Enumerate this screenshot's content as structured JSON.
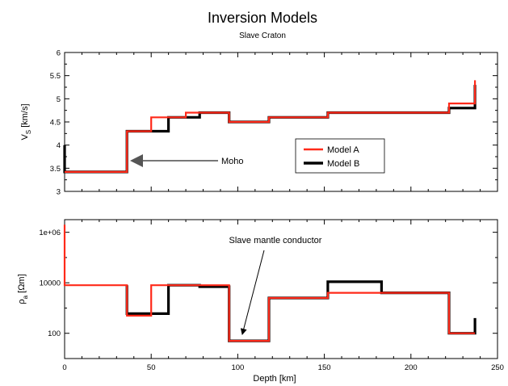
{
  "title": "Inversion Models",
  "subtitle": "Slave Craton",
  "colors": {
    "model_a": "#ff2a1a",
    "model_b": "#000000",
    "arrow": "#777777"
  },
  "chart_data": [
    {
      "type": "line",
      "step": true,
      "ylabel": "V",
      "ylabel_sub": "S",
      "ylabel_unit": " [km/s]",
      "xlim": [
        0,
        250
      ],
      "ylim": [
        3,
        6
      ],
      "yticks": [
        "3",
        "3.5",
        "4",
        "4.5",
        "5",
        "5.5",
        "6"
      ],
      "ytick_values": [
        3,
        3.5,
        4,
        4.5,
        5,
        5.5,
        6
      ],
      "xtick_values": [
        0,
        50,
        100,
        150,
        200,
        250
      ],
      "legend": {
        "placement": "center-right",
        "entries": [
          "Model A",
          "Model B"
        ]
      },
      "annotation": {
        "text": "Moho",
        "target": [
          36,
          3.65
        ]
      },
      "series": [
        {
          "name": "Model A",
          "x": [
            0,
            36,
            36,
            50,
            50,
            70,
            70,
            95,
            95,
            118,
            118,
            152,
            152,
            222,
            222,
            237,
            237
          ],
          "y": [
            3.42,
            3.42,
            4.3,
            4.3,
            4.6,
            4.6,
            4.7,
            4.7,
            4.5,
            4.5,
            4.6,
            4.6,
            4.7,
            4.7,
            4.9,
            4.9,
            5.4
          ]
        },
        {
          "name": "Model B",
          "x": [
            0,
            0,
            36,
            36,
            60,
            60,
            78,
            78,
            95,
            95,
            118,
            118,
            152,
            152,
            222,
            222,
            237,
            237
          ],
          "y": [
            4.0,
            3.42,
            3.42,
            4.3,
            4.3,
            4.6,
            4.6,
            4.7,
            4.7,
            4.5,
            4.5,
            4.6,
            4.6,
            4.7,
            4.7,
            4.8,
            4.8,
            5.3
          ]
        }
      ]
    },
    {
      "type": "line",
      "step": true,
      "log_y": true,
      "xlabel": "Depth [km]",
      "ylabel": "ρ",
      "ylabel_sub": "a",
      "ylabel_unit": " [Ωm]",
      "xlim": [
        0,
        250
      ],
      "ylim_log10": [
        1,
        6.5
      ],
      "yticks": [
        "100",
        "10000",
        "1e+06"
      ],
      "ytick_values": [
        100,
        10000,
        1000000
      ],
      "xticks": [
        "0",
        "50",
        "100",
        "150",
        "200",
        "250"
      ],
      "xtick_values": [
        0,
        50,
        100,
        150,
        200,
        250
      ],
      "annotation": {
        "text": "Slave mantle conductor",
        "target": [
          103,
          60
        ]
      },
      "series": [
        {
          "name": "Model A",
          "x": [
            0,
            0,
            36,
            36,
            50,
            50,
            95,
            95,
            118,
            118,
            152,
            152,
            222,
            222,
            237
          ],
          "y": [
            2000000,
            8000,
            8000,
            500,
            500,
            8000,
            8000,
            50,
            50,
            2500,
            2500,
            4000,
            4000,
            100,
            100
          ]
        },
        {
          "name": "Model B",
          "x": [
            36,
            36,
            60,
            60,
            78,
            78,
            95,
            95,
            118,
            118,
            152,
            152,
            183,
            183,
            222,
            222,
            237,
            237
          ],
          "y": [
            8000,
            600,
            600,
            8000,
            8000,
            7000,
            7000,
            50,
            50,
            2500,
            2500,
            11000,
            11000,
            4000,
            4000,
            100,
            100,
            400
          ]
        }
      ]
    }
  ]
}
